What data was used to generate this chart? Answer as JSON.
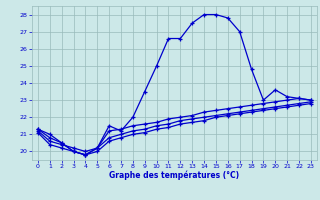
{
  "xlabel": "Graphe des températures (°C)",
  "hours": [
    0,
    1,
    2,
    3,
    4,
    5,
    6,
    7,
    8,
    9,
    10,
    11,
    12,
    13,
    14,
    15,
    16,
    17,
    18,
    19,
    20,
    21,
    22,
    23
  ],
  "temp_main": [
    21.3,
    21.0,
    20.5,
    20.0,
    19.8,
    20.2,
    21.5,
    21.2,
    22.0,
    23.5,
    25.0,
    26.6,
    26.6,
    27.5,
    28.0,
    28.0,
    27.8,
    27.0,
    24.8,
    23.0,
    23.6,
    23.2,
    23.1,
    23.0
  ],
  "temp_line2": [
    21.3,
    20.8,
    20.5,
    20.0,
    19.8,
    20.2,
    21.2,
    21.3,
    21.5,
    21.6,
    21.7,
    21.9,
    22.0,
    22.1,
    22.3,
    22.4,
    22.5,
    22.6,
    22.7,
    22.8,
    22.9,
    23.0,
    23.1,
    23.0
  ],
  "temp_line3": [
    21.2,
    20.6,
    20.4,
    20.2,
    20.0,
    20.2,
    20.8,
    21.0,
    21.2,
    21.3,
    21.5,
    21.6,
    21.8,
    21.9,
    22.0,
    22.1,
    22.2,
    22.3,
    22.4,
    22.5,
    22.6,
    22.7,
    22.8,
    22.9
  ],
  "temp_line4": [
    21.1,
    20.4,
    20.2,
    20.0,
    19.8,
    20.0,
    20.6,
    20.8,
    21.0,
    21.1,
    21.3,
    21.4,
    21.6,
    21.7,
    21.8,
    22.0,
    22.1,
    22.2,
    22.3,
    22.4,
    22.5,
    22.6,
    22.7,
    22.8
  ],
  "bg_color": "#cce8e8",
  "line_color": "#0000cc",
  "grid_color": "#99bbbb",
  "ylim": [
    19.5,
    28.5
  ],
  "yticks": [
    20,
    21,
    22,
    23,
    24,
    25,
    26,
    27,
    28
  ],
  "xticks": [
    0,
    1,
    2,
    3,
    4,
    5,
    6,
    7,
    8,
    9,
    10,
    11,
    12,
    13,
    14,
    15,
    16,
    17,
    18,
    19,
    20,
    21,
    22,
    23
  ]
}
